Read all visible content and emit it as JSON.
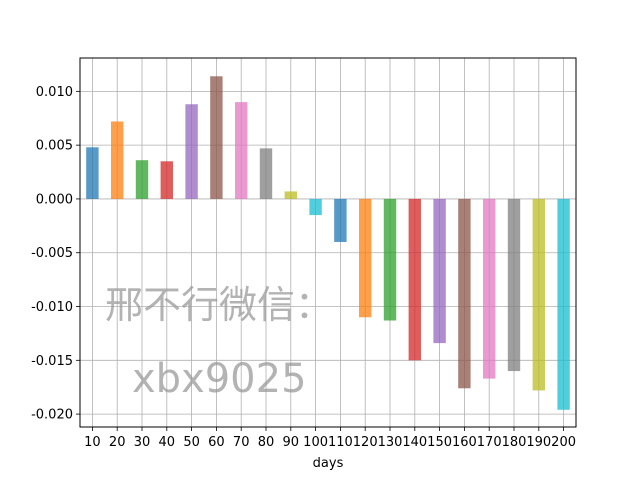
{
  "chart_data": {
    "type": "bar",
    "xlabel": "days",
    "ylabel": "",
    "title": "",
    "categories": [
      "10",
      "20",
      "30",
      "40",
      "50",
      "60",
      "70",
      "80",
      "90",
      "100",
      "110",
      "120",
      "130",
      "140",
      "150",
      "160",
      "170",
      "180",
      "190",
      "200"
    ],
    "values": [
      0.0048,
      0.0072,
      0.0036,
      0.0035,
      0.0088,
      0.0114,
      0.009,
      0.0047,
      0.0007,
      -0.0015,
      -0.004,
      -0.011,
      -0.0113,
      -0.015,
      -0.0134,
      -0.0176,
      -0.0167,
      -0.016,
      -0.0178,
      -0.0196
    ],
    "ylim": [
      -0.0212,
      0.0131
    ],
    "yticks": [
      0.01,
      0.005,
      0.0,
      -0.005,
      -0.01,
      -0.015,
      -0.02
    ],
    "ytick_labels": [
      "0.010",
      "0.005",
      "0.000",
      "-0.005",
      "-0.010",
      "-0.015",
      "-0.020"
    ],
    "grid": true,
    "colors": [
      "#1f77b4",
      "#ff7f0e",
      "#2ca02c",
      "#d62728",
      "#9467bd",
      "#8c564b",
      "#e377c2",
      "#7f7f7f",
      "#bcbd22",
      "#17becf"
    ],
    "bar_alpha": 0.75
  },
  "watermark": {
    "line1": "邢不行微信：",
    "line2": "xbx9025"
  }
}
